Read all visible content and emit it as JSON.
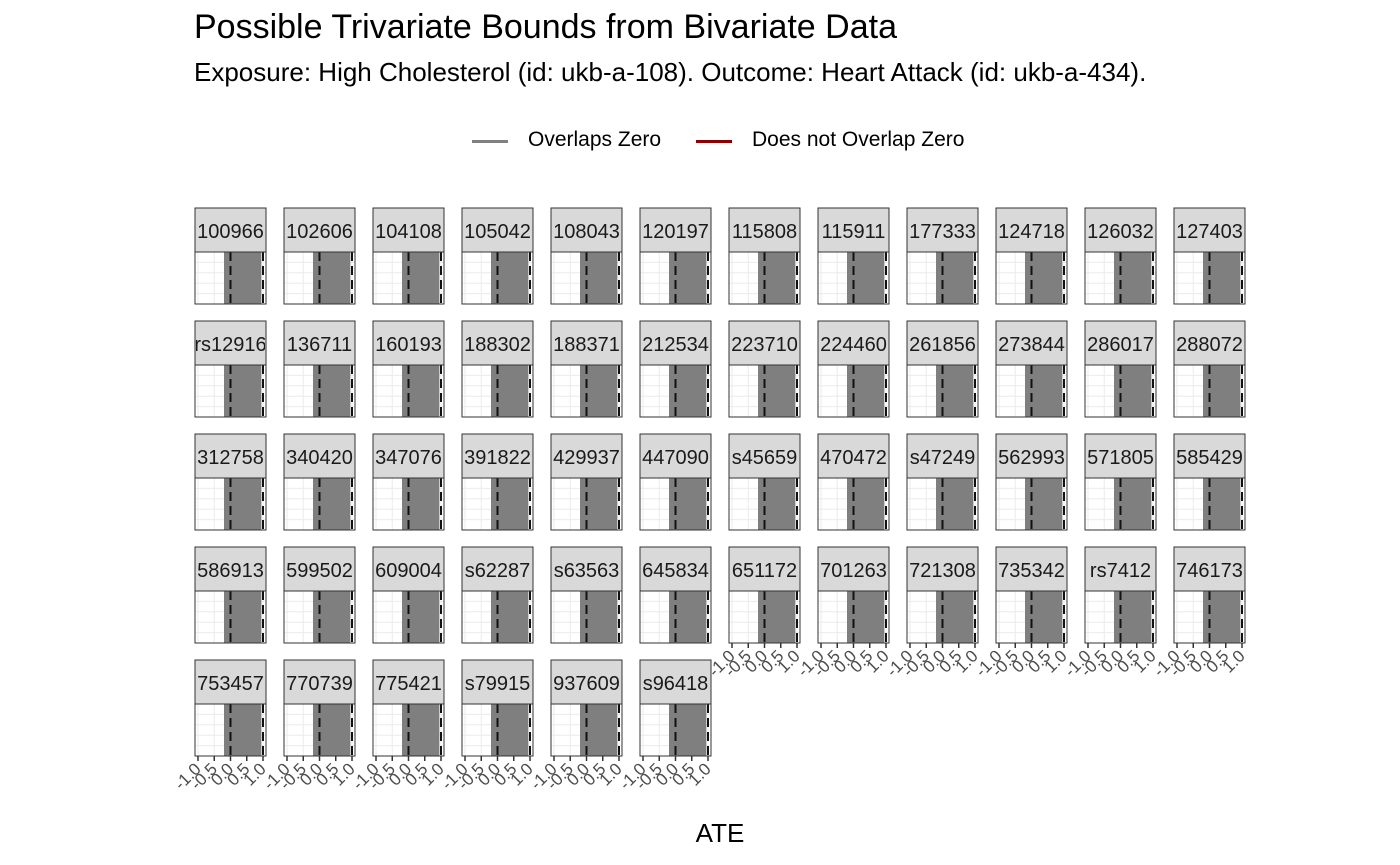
{
  "title": "Possible Trivariate Bounds from Bivariate Data",
  "subtitle": "Exposure: High Cholesterol (id: ukb-a-108). Outcome: Heart Attack (id: ukb-a-434).",
  "legend": {
    "items": [
      {
        "label": "Overlaps Zero",
        "color": "#808080"
      },
      {
        "label": "Does not Overlap Zero",
        "color": "#8b0000"
      }
    ]
  },
  "colors": {
    "strip_bg": "#d9d9d9",
    "panel_border": "#333333",
    "bound_fill": "#7f7f7f",
    "grid": "#ebebeb"
  },
  "chart_data": {
    "type": "bar",
    "facet_layout": {
      "ncol": 12,
      "nrow": 5
    },
    "xlabel": "ATE",
    "xlim": [
      -1.0,
      1.0
    ],
    "x_ticks": [
      "-1.0",
      "-0.5",
      "0.0",
      "0.5",
      "1.0"
    ],
    "reference_lines": [
      0,
      1
    ],
    "panels": [
      {
        "label": "100966",
        "lower": -0.2,
        "upper": 0.95,
        "overlaps_zero": true
      },
      {
        "label": "102606",
        "lower": -0.2,
        "upper": 0.95,
        "overlaps_zero": true
      },
      {
        "label": "104108",
        "lower": -0.2,
        "upper": 0.95,
        "overlaps_zero": true
      },
      {
        "label": "105042",
        "lower": -0.2,
        "upper": 0.95,
        "overlaps_zero": true
      },
      {
        "label": "108043",
        "lower": -0.2,
        "upper": 0.95,
        "overlaps_zero": true
      },
      {
        "label": "120197",
        "lower": -0.2,
        "upper": 0.95,
        "overlaps_zero": true
      },
      {
        "label": "115808",
        "lower": -0.2,
        "upper": 0.95,
        "overlaps_zero": true
      },
      {
        "label": "115911",
        "lower": -0.2,
        "upper": 0.95,
        "overlaps_zero": true
      },
      {
        "label": "177333",
        "lower": -0.2,
        "upper": 0.95,
        "overlaps_zero": true
      },
      {
        "label": "124718",
        "lower": -0.2,
        "upper": 0.95,
        "overlaps_zero": true
      },
      {
        "label": "126032",
        "lower": -0.2,
        "upper": 0.95,
        "overlaps_zero": true
      },
      {
        "label": "127403",
        "lower": -0.2,
        "upper": 0.95,
        "overlaps_zero": true
      },
      {
        "label": "rs12916",
        "lower": -0.2,
        "upper": 0.95,
        "overlaps_zero": true
      },
      {
        "label": "136711",
        "lower": -0.2,
        "upper": 0.95,
        "overlaps_zero": true
      },
      {
        "label": "160193",
        "lower": -0.2,
        "upper": 0.95,
        "overlaps_zero": true
      },
      {
        "label": "188302",
        "lower": -0.2,
        "upper": 0.95,
        "overlaps_zero": true
      },
      {
        "label": "188371",
        "lower": -0.2,
        "upper": 0.95,
        "overlaps_zero": true
      },
      {
        "label": "212534",
        "lower": -0.2,
        "upper": 0.95,
        "overlaps_zero": true
      },
      {
        "label": "223710",
        "lower": -0.2,
        "upper": 0.95,
        "overlaps_zero": true
      },
      {
        "label": "224460",
        "lower": -0.2,
        "upper": 0.95,
        "overlaps_zero": true
      },
      {
        "label": "261856",
        "lower": -0.2,
        "upper": 0.95,
        "overlaps_zero": true
      },
      {
        "label": "273844",
        "lower": -0.2,
        "upper": 0.95,
        "overlaps_zero": true
      },
      {
        "label": "286017",
        "lower": -0.2,
        "upper": 0.95,
        "overlaps_zero": true
      },
      {
        "label": "288072",
        "lower": -0.2,
        "upper": 0.95,
        "overlaps_zero": true
      },
      {
        "label": "312758",
        "lower": -0.2,
        "upper": 0.95,
        "overlaps_zero": true
      },
      {
        "label": "340420",
        "lower": -0.2,
        "upper": 0.95,
        "overlaps_zero": true
      },
      {
        "label": "347076",
        "lower": -0.2,
        "upper": 0.95,
        "overlaps_zero": true
      },
      {
        "label": "391822",
        "lower": -0.2,
        "upper": 0.95,
        "overlaps_zero": true
      },
      {
        "label": "429937",
        "lower": -0.2,
        "upper": 0.95,
        "overlaps_zero": true
      },
      {
        "label": "447090",
        "lower": -0.2,
        "upper": 0.95,
        "overlaps_zero": true
      },
      {
        "label": "s45659",
        "lower": -0.2,
        "upper": 0.95,
        "overlaps_zero": true
      },
      {
        "label": "470472",
        "lower": -0.2,
        "upper": 0.95,
        "overlaps_zero": true
      },
      {
        "label": "s47249",
        "lower": -0.2,
        "upper": 0.95,
        "overlaps_zero": true
      },
      {
        "label": "562993",
        "lower": -0.2,
        "upper": 0.95,
        "overlaps_zero": true
      },
      {
        "label": "571805",
        "lower": -0.2,
        "upper": 0.95,
        "overlaps_zero": true
      },
      {
        "label": "585429",
        "lower": -0.2,
        "upper": 0.95,
        "overlaps_zero": true
      },
      {
        "label": "586913",
        "lower": -0.2,
        "upper": 0.95,
        "overlaps_zero": true
      },
      {
        "label": "599502",
        "lower": -0.2,
        "upper": 0.95,
        "overlaps_zero": true
      },
      {
        "label": "609004",
        "lower": -0.2,
        "upper": 0.95,
        "overlaps_zero": true
      },
      {
        "label": "s62287",
        "lower": -0.2,
        "upper": 0.95,
        "overlaps_zero": true
      },
      {
        "label": "s63563",
        "lower": -0.2,
        "upper": 0.95,
        "overlaps_zero": true
      },
      {
        "label": "645834",
        "lower": -0.2,
        "upper": 0.95,
        "overlaps_zero": true
      },
      {
        "label": "651172",
        "lower": -0.2,
        "upper": 0.95,
        "overlaps_zero": true
      },
      {
        "label": "701263",
        "lower": -0.2,
        "upper": 0.95,
        "overlaps_zero": true
      },
      {
        "label": "721308",
        "lower": -0.2,
        "upper": 0.95,
        "overlaps_zero": true
      },
      {
        "label": "735342",
        "lower": -0.2,
        "upper": 0.95,
        "overlaps_zero": true
      },
      {
        "label": "rs7412",
        "lower": -0.2,
        "upper": 0.95,
        "overlaps_zero": true
      },
      {
        "label": "746173",
        "lower": -0.2,
        "upper": 0.95,
        "overlaps_zero": true
      },
      {
        "label": "753457",
        "lower": -0.2,
        "upper": 0.95,
        "overlaps_zero": true
      },
      {
        "label": "770739",
        "lower": -0.2,
        "upper": 0.95,
        "overlaps_zero": true
      },
      {
        "label": "775421",
        "lower": -0.2,
        "upper": 0.95,
        "overlaps_zero": true
      },
      {
        "label": "s79915",
        "lower": -0.2,
        "upper": 0.95,
        "overlaps_zero": true
      },
      {
        "label": "937609",
        "lower": -0.2,
        "upper": 0.95,
        "overlaps_zero": true
      },
      {
        "label": "s96418",
        "lower": -0.2,
        "upper": 0.95,
        "overlaps_zero": true
      }
    ]
  }
}
